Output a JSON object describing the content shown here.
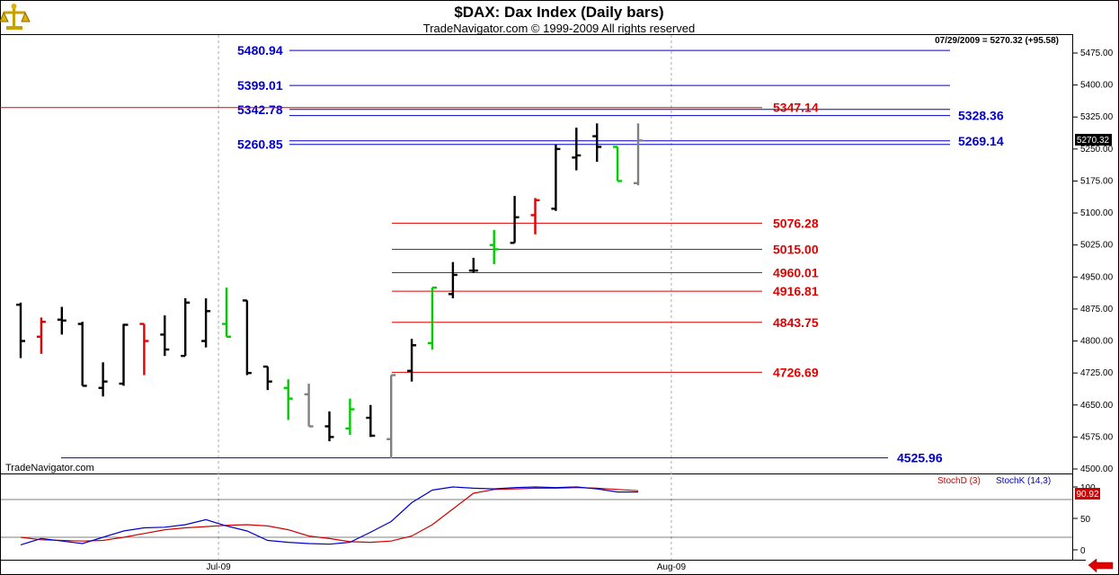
{
  "header": {
    "title": "$DAX:  Dax Index  (Daily bars)",
    "subtitle": "TradeNavigator.com © 1999-2009 All rights reserved",
    "watermark": "TradeNavigator.com",
    "quote": "07/29/2009 = 5270.32 (+95.58)",
    "last_price_label": "5270.32",
    "stoch_last_label": "90.92",
    "logo_icon": "scales-icon",
    "nav_icon": "left-arrow-icon"
  },
  "chart_data": [
    {
      "type": "ohlc",
      "ylim": [
        4500,
        5500
      ],
      "y_ticks": [
        "4500.00",
        "4575.00",
        "4650.00",
        "4725.00",
        "4800.00",
        "4875.00",
        "4950.00",
        "5025.00",
        "5100.00",
        "5175.00",
        "5250.00",
        "5325.00",
        "5400.00",
        "5475.00"
      ],
      "y_tick_values": [
        4500,
        4575,
        4650,
        4725,
        4800,
        4875,
        4950,
        5025,
        5100,
        5175,
        5250,
        5325,
        5400,
        5475
      ],
      "x_labels": [
        {
          "text": "Jul-09",
          "index": 9
        },
        {
          "text": "Aug-09",
          "index": 31
        }
      ],
      "bars": [
        {
          "o": 4885,
          "h": 4890,
          "l": 4760,
          "c": 4800,
          "color": "black"
        },
        {
          "o": 4810,
          "h": 4855,
          "l": 4770,
          "c": 4845,
          "color": "red"
        },
        {
          "o": 4850,
          "h": 4880,
          "l": 4815,
          "c": 4848,
          "color": "black"
        },
        {
          "o": 4840,
          "h": 4845,
          "l": 4695,
          "c": 4695,
          "color": "black"
        },
        {
          "o": 4690,
          "h": 4750,
          "l": 4670,
          "c": 4705,
          "color": "black"
        },
        {
          "o": 4700,
          "h": 4840,
          "l": 4695,
          "c": 4838,
          "color": "black"
        },
        {
          "o": 4840,
          "h": 4840,
          "l": 4720,
          "c": 4800,
          "color": "red"
        },
        {
          "o": 4815,
          "h": 4860,
          "l": 4765,
          "c": 4780,
          "color": "black"
        },
        {
          "o": 4765,
          "h": 4900,
          "l": 4765,
          "c": 4890,
          "color": "black"
        },
        {
          "o": 4800,
          "h": 4900,
          "l": 4785,
          "c": 4870,
          "color": "black"
        },
        {
          "o": 4840,
          "h": 4925,
          "l": 4810,
          "c": 4810,
          "color": "green"
        },
        {
          "o": 4895,
          "h": 4895,
          "l": 4720,
          "c": 4725,
          "color": "black"
        },
        {
          "o": 4740,
          "h": 4740,
          "l": 4685,
          "c": 4705,
          "color": "black"
        },
        {
          "o": 4690,
          "h": 4710,
          "l": 4615,
          "c": 4665,
          "color": "green"
        },
        {
          "o": 4675,
          "h": 4700,
          "l": 4600,
          "c": 4600,
          "color": "gray"
        },
        {
          "o": 4600,
          "h": 4635,
          "l": 4565,
          "c": 4575,
          "color": "black"
        },
        {
          "o": 4595,
          "h": 4665,
          "l": 4580,
          "c": 4640,
          "color": "green"
        },
        {
          "o": 4620,
          "h": 4650,
          "l": 4575,
          "c": 4578,
          "color": "black"
        },
        {
          "o": 4570,
          "h": 4720,
          "l": 4525,
          "c": 4720,
          "color": "gray"
        },
        {
          "o": 4730,
          "h": 4805,
          "l": 4705,
          "c": 4790,
          "color": "black"
        },
        {
          "o": 4795,
          "h": 4925,
          "l": 4780,
          "c": 4925,
          "color": "green"
        },
        {
          "o": 4910,
          "h": 4985,
          "l": 4900,
          "c": 4955,
          "color": "black"
        },
        {
          "o": 4965,
          "h": 4995,
          "l": 4960,
          "c": 4965,
          "color": "black"
        },
        {
          "o": 5025,
          "h": 5060,
          "l": 4980,
          "c": 5015,
          "color": "green"
        },
        {
          "o": 5030,
          "h": 5140,
          "l": 5030,
          "c": 5090,
          "color": "black"
        },
        {
          "o": 5095,
          "h": 5135,
          "l": 5050,
          "c": 5130,
          "color": "red"
        },
        {
          "o": 5110,
          "h": 5260,
          "l": 5105,
          "c": 5250,
          "color": "black"
        },
        {
          "o": 5230,
          "h": 5300,
          "l": 5200,
          "c": 5235,
          "color": "black"
        },
        {
          "o": 5280,
          "h": 5310,
          "l": 5220,
          "c": 5255,
          "color": "black"
        },
        {
          "o": 5255,
          "h": 5255,
          "l": 5175,
          "c": 5175,
          "color": "green"
        },
        {
          "o": 5170,
          "h": 5310,
          "l": 5165,
          "c": 5270,
          "color": "gray"
        }
      ],
      "levels": [
        {
          "value": 5480.94,
          "label": "5480.94",
          "color": "blue",
          "side": "left"
        },
        {
          "value": 5399.01,
          "label": "5399.01",
          "color": "blue",
          "side": "left"
        },
        {
          "value": 5342.78,
          "label": "5342.78",
          "color": "blue",
          "side": "left"
        },
        {
          "value": 5347.14,
          "label": "5347.14",
          "color": "red",
          "side": "mid"
        },
        {
          "value": 5328.36,
          "label": "5328.36",
          "color": "blue",
          "side": "right"
        },
        {
          "value": 5269.14,
          "label": "5269.14",
          "color": "blue",
          "side": "right"
        },
        {
          "value": 5260.85,
          "label": "5260.85",
          "color": "blue",
          "side": "left"
        },
        {
          "value": 5076.28,
          "label": "5076.28",
          "color": "red",
          "side": "mid"
        },
        {
          "value": 5015.0,
          "label": "5015.00",
          "color": "red",
          "side": "mid"
        },
        {
          "value": 4960.01,
          "label": "4960.01",
          "color": "red",
          "side": "mid"
        },
        {
          "value": 4916.81,
          "label": "4916.81",
          "color": "red",
          "side": "mid"
        },
        {
          "value": 4843.75,
          "label": "4843.75",
          "color": "red",
          "side": "mid"
        },
        {
          "value": 4726.69,
          "label": "4726.69",
          "color": "red",
          "side": "mid"
        },
        {
          "value": 4525.96,
          "label": "4525.96",
          "color": "blue",
          "side": "right"
        }
      ]
    },
    {
      "type": "line",
      "ylim": [
        0,
        100
      ],
      "y_ticks": [
        "0",
        "50",
        "100"
      ],
      "y_tick_values": [
        0,
        50,
        100
      ],
      "guides": [
        20,
        80
      ],
      "series": [
        {
          "name": "StochD (3)",
          "color": "#d00000",
          "values": [
            20,
            16,
            15,
            14,
            15,
            20,
            26,
            32,
            35,
            37,
            39,
            40,
            38,
            32,
            22,
            18,
            13,
            12,
            14,
            22,
            40,
            65,
            90,
            96,
            97,
            98,
            98,
            99,
            98,
            96,
            94
          ]
        },
        {
          "name": "StochK (14,3)",
          "color": "#0000cc",
          "values": [
            8,
            18,
            14,
            10,
            20,
            30,
            35,
            36,
            40,
            48,
            38,
            30,
            15,
            12,
            10,
            9,
            12,
            28,
            45,
            75,
            95,
            100,
            98,
            97,
            99,
            100,
            99,
            100,
            97,
            92,
            92
          ]
        }
      ]
    }
  ]
}
